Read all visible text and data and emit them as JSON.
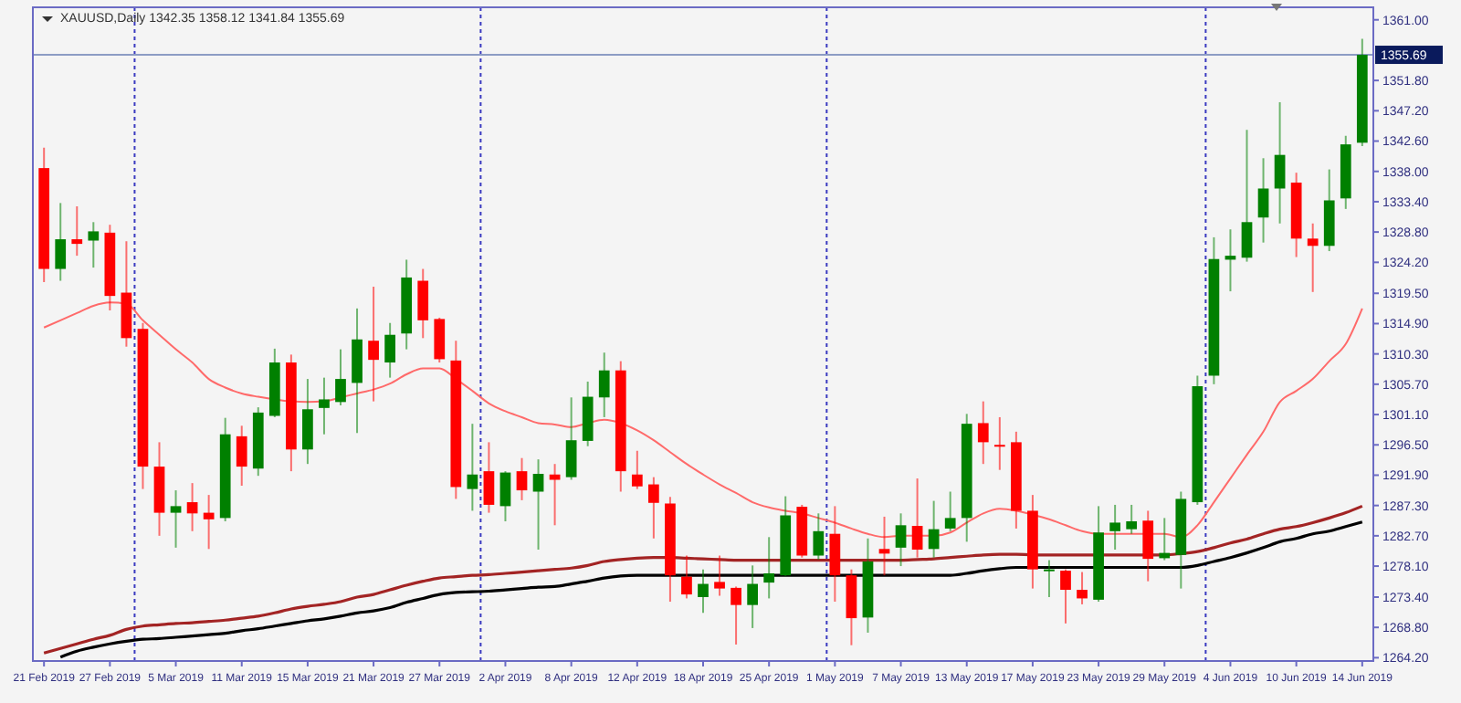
{
  "chart_data": {
    "type": "candlestick",
    "title": "XAUUSD,Daily  1342.35 1358.12 1341.84 1355.69",
    "categories": [
      "21 Feb 2019",
      null,
      null,
      null,
      "27 Feb 2019",
      null,
      null,
      null,
      "5 Mar 2019",
      null,
      null,
      null,
      "11 Mar 2019",
      null,
      null,
      null,
      "15 Mar 2019",
      null,
      null,
      null,
      "21 Mar 2019",
      null,
      null,
      null,
      "27 Mar 2019",
      null,
      null,
      null,
      "2 Apr 2019",
      null,
      null,
      null,
      "8 Apr 2019",
      null,
      null,
      null,
      "12 Apr 2019",
      null,
      null,
      null,
      "18 Apr 2019",
      null,
      null,
      null,
      "25 Apr 2019",
      null,
      null,
      null,
      "1 May 2019",
      null,
      null,
      null,
      "7 May 2019",
      null,
      null,
      null,
      "13 May 2019",
      null,
      null,
      null,
      "17 May 2019",
      null,
      null,
      null,
      "23 May 2019",
      null,
      null,
      null,
      "29 May 2019",
      null,
      null,
      null,
      "4 Jun 2019",
      null,
      null,
      null,
      "10 Jun 2019",
      null,
      null,
      null,
      "14 Jun 2019"
    ],
    "ylim": [
      1263.7,
      1362.9
    ],
    "yticks": [
      {
        "value": 1361,
        "label": "1361.00"
      },
      {
        "value": 1351.8,
        "label": "1351.80"
      },
      {
        "value": 1347.2,
        "label": "1347.20"
      },
      {
        "value": 1342.6,
        "label": "1342.60"
      },
      {
        "value": 1338,
        "label": "1338.00"
      },
      {
        "value": 1333.4,
        "label": "1333.40"
      },
      {
        "value": 1328.8,
        "label": "1328.80"
      },
      {
        "value": 1324.2,
        "label": "1324.20"
      },
      {
        "value": 1319.5,
        "label": "1319.50"
      },
      {
        "value": 1314.9,
        "label": "1314.90"
      },
      {
        "value": 1310.3,
        "label": "1310.30"
      },
      {
        "value": 1305.7,
        "label": "1305.70"
      },
      {
        "value": 1301.1,
        "label": "1301.10"
      },
      {
        "value": 1296.5,
        "label": "1296.50"
      },
      {
        "value": 1291.9,
        "label": "1291.90"
      },
      {
        "value": 1287.3,
        "label": "1287.30"
      },
      {
        "value": 1282.7,
        "label": "1282.70"
      },
      {
        "value": 1278.1,
        "label": "1278.10"
      },
      {
        "value": 1273.4,
        "label": "1273.40"
      },
      {
        "value": 1268.8,
        "label": "1268.80"
      },
      {
        "value": 1264.2,
        "label": "1264.20"
      }
    ],
    "ref_lines": [
      {
        "axis": "y",
        "value": 1355.69,
        "label": "1355.69",
        "color": "#8c9cc4",
        "line_style": "solid"
      }
    ],
    "series": [
      {
        "type": "line",
        "color": "#ff6a6a",
        "values": [
          1314.3,
          1315.4,
          1316.5,
          1317.6,
          1318.1,
          1317.9,
          1315.4,
          1313.2,
          1311.0,
          1309.0,
          1306.5,
          1305.2,
          1304.3,
          1303.8,
          1303.4,
          1303.1,
          1303.0,
          1303.1,
          1303.7,
          1304.3,
          1304.9,
          1305.8,
          1307.2,
          1308.1,
          1308.1,
          1306.5,
          1304.7,
          1302.8,
          1301.6,
          1300.7,
          1299.8,
          1299.6,
          1299.2,
          1299.8,
          1300.3,
          1299.8,
          1298.7,
          1297.2,
          1295.4,
          1293.6,
          1292.0,
          1290.5,
          1289.2,
          1287.8,
          1287.0,
          1286.5,
          1286.1,
          1285.4,
          1284.7,
          1283.8,
          1283.0,
          1282.5,
          1282.7,
          1282.7,
          1282.7,
          1283.2,
          1284.7,
          1286.1,
          1286.8,
          1286.5,
          1285.9,
          1285.2,
          1284.3,
          1283.4,
          1283.0,
          1283.0,
          1283.0,
          1283.0,
          1283.0,
          1282.5,
          1284.3,
          1287.8,
          1291.4,
          1295.0,
          1298.5,
          1303.0,
          1304.7,
          1306.5,
          1309.2,
          1311.8,
          1317.2
        ]
      },
      {
        "type": "line",
        "color": "#a32424",
        "values": [
          1264.9,
          1265.6,
          1266.3,
          1267.0,
          1267.6,
          1268.5,
          1269.0,
          1269.2,
          1269.4,
          1269.5,
          1269.7,
          1269.9,
          1270.2,
          1270.5,
          1271.0,
          1271.6,
          1272.0,
          1272.3,
          1272.7,
          1273.4,
          1273.8,
          1274.5,
          1275.2,
          1275.8,
          1276.3,
          1276.5,
          1276.7,
          1276.8,
          1277.0,
          1277.2,
          1277.4,
          1277.6,
          1277.8,
          1278.2,
          1278.8,
          1279.1,
          1279.3,
          1279.4,
          1279.4,
          1279.3,
          1279.2,
          1279.1,
          1279.0,
          1279.0,
          1279.0,
          1279.0,
          1279.0,
          1279.0,
          1279.0,
          1279.0,
          1279.0,
          1279.0,
          1279.0,
          1279.1,
          1279.2,
          1279.4,
          1279.6,
          1279.8,
          1279.9,
          1279.9,
          1279.8,
          1279.8,
          1279.8,
          1279.8,
          1279.8,
          1279.8,
          1279.8,
          1279.8,
          1279.8,
          1280.0,
          1280.3,
          1280.9,
          1281.6,
          1282.2,
          1283.0,
          1283.7,
          1284.1,
          1284.7,
          1285.4,
          1286.2,
          1287.2
        ]
      },
      {
        "type": "line",
        "color": "#000000",
        "values": [
          null,
          1264.3,
          1265.2,
          1265.8,
          1266.3,
          1266.7,
          1267.0,
          1267.1,
          1267.3,
          1267.5,
          1267.7,
          1267.9,
          1268.3,
          1268.6,
          1269.0,
          1269.4,
          1269.8,
          1270.1,
          1270.5,
          1271.0,
          1271.3,
          1271.8,
          1272.6,
          1273.2,
          1273.8,
          1274.1,
          1274.2,
          1274.3,
          1274.5,
          1274.7,
          1274.9,
          1275.0,
          1275.4,
          1275.8,
          1276.3,
          1276.6,
          1276.7,
          1276.7,
          1276.7,
          1276.7,
          1276.7,
          1276.7,
          1276.7,
          1276.7,
          1276.7,
          1276.7,
          1276.7,
          1276.7,
          1276.7,
          1276.7,
          1276.7,
          1276.7,
          1276.7,
          1276.7,
          1276.7,
          1276.7,
          1277.0,
          1277.4,
          1277.7,
          1277.9,
          1277.9,
          1277.9,
          1277.9,
          1277.9,
          1277.9,
          1277.9,
          1277.9,
          1277.9,
          1277.9,
          1277.9,
          1278.2,
          1278.8,
          1279.4,
          1280.1,
          1280.9,
          1281.8,
          1282.3,
          1283.0,
          1283.4,
          1284.1,
          1284.8
        ]
      },
      {
        "colors": [
          "#ff0000",
          "#008000",
          "#ff0000",
          "#008000",
          "#ff0000",
          "#ff0000",
          "#ff0000",
          "#ff0000",
          "#008000",
          "#ff0000",
          "#ff0000",
          "#008000",
          "#ff0000",
          "#008000",
          "#008000",
          "#ff0000",
          "#008000",
          "#008000",
          "#008000",
          "#008000",
          "#ff0000",
          "#008000",
          "#008000",
          "#ff0000",
          "#ff0000",
          "#ff0000",
          "#008000",
          "#ff0000",
          "#008000",
          "#ff0000",
          "#008000",
          "#ff0000",
          "#008000",
          "#008000",
          "#008000",
          "#ff0000",
          "#ff0000",
          "#ff0000",
          "#ff0000",
          "#ff0000",
          "#008000",
          "#ff0000",
          "#ff0000",
          "#008000",
          "#008000",
          "#008000",
          "#ff0000",
          "#008000",
          "#ff0000",
          "#ff0000",
          "#008000",
          "#ff0000",
          "#008000",
          "#ff0000",
          "#008000",
          "#008000",
          "#008000",
          "#ff0000",
          "#ff0000",
          "#ff0000",
          "#ff0000",
          "#008000",
          "#ff0000",
          "#ff0000",
          "#008000",
          "#008000",
          "#008000",
          "#ff0000",
          "#008000",
          "#008000",
          "#008000",
          "#008000",
          "#008000",
          "#008000",
          "#008000",
          "#008000",
          "#ff0000",
          "#ff0000",
          "#008000",
          "#008000",
          "#008000"
        ],
        "ohlc": [
          [
            1338.5,
            1341.6,
            1321.2,
            1323.2
          ],
          [
            1323.2,
            1333.2,
            1321.4,
            1327.7
          ],
          [
            1327.7,
            1332.7,
            1325.2,
            1327.0
          ],
          [
            1327.5,
            1330.3,
            1323.4,
            1328.9
          ],
          [
            1328.7,
            1329.9,
            1316.9,
            1319.1
          ],
          [
            1319.6,
            1327.4,
            1311.4,
            1312.7
          ],
          [
            1314.1,
            1315.0,
            1289.8,
            1293.2
          ],
          [
            1293.2,
            1296.9,
            1282.7,
            1286.2
          ],
          [
            1286.2,
            1289.6,
            1280.9,
            1287.2
          ],
          [
            1287.8,
            1290.7,
            1283.4,
            1286.1
          ],
          [
            1286.2,
            1288.9,
            1280.7,
            1285.2
          ],
          [
            1285.4,
            1300.6,
            1284.9,
            1298.1
          ],
          [
            1297.8,
            1299.4,
            1290.3,
            1293.2
          ],
          [
            1292.9,
            1302.2,
            1291.8,
            1301.4
          ],
          [
            1300.9,
            1311.1,
            1300.7,
            1309.0
          ],
          [
            1309.0,
            1310.2,
            1292.5,
            1295.8
          ],
          [
            1295.8,
            1306.5,
            1293.6,
            1301.9
          ],
          [
            1302.1,
            1306.7,
            1298.1,
            1303.4
          ],
          [
            1303.0,
            1311.0,
            1302.5,
            1306.5
          ],
          [
            1305.9,
            1317.2,
            1298.3,
            1312.5
          ],
          [
            1312.3,
            1320.5,
            1303.1,
            1309.4
          ],
          [
            1309.0,
            1315.0,
            1306.7,
            1313.2
          ],
          [
            1313.4,
            1324.6,
            1311.0,
            1321.9
          ],
          [
            1321.4,
            1323.2,
            1312.7,
            1315.4
          ],
          [
            1315.6,
            1315.8,
            1309.0,
            1309.5
          ],
          [
            1309.3,
            1312.3,
            1288.3,
            1290.1
          ],
          [
            1289.8,
            1299.7,
            1286.5,
            1292.0
          ],
          [
            1292.5,
            1296.9,
            1286.2,
            1287.4
          ],
          [
            1287.2,
            1292.5,
            1284.9,
            1292.3
          ],
          [
            1292.5,
            1294.5,
            1288.1,
            1289.6
          ],
          [
            1289.4,
            1294.3,
            1280.6,
            1292.1
          ],
          [
            1292.0,
            1293.6,
            1284.3,
            1291.2
          ],
          [
            1291.6,
            1303.7,
            1291.2,
            1297.2
          ],
          [
            1297.1,
            1306.1,
            1296.3,
            1303.8
          ],
          [
            1303.7,
            1310.5,
            1300.7,
            1307.8
          ],
          [
            1307.8,
            1309.2,
            1289.4,
            1292.5
          ],
          [
            1292.0,
            1295.6,
            1289.8,
            1290.2
          ],
          [
            1290.5,
            1291.6,
            1282.3,
            1287.7
          ],
          [
            1287.6,
            1288.6,
            1272.7,
            1276.7
          ],
          [
            1276.5,
            1279.7,
            1273.2,
            1273.8
          ],
          [
            1273.4,
            1277.6,
            1271.0,
            1275.4
          ],
          [
            1275.7,
            1279.7,
            1273.6,
            1274.7
          ],
          [
            1274.8,
            1275.0,
            1266.2,
            1272.2
          ],
          [
            1272.2,
            1278.2,
            1268.7,
            1275.4
          ],
          [
            1275.6,
            1282.5,
            1273.2,
            1277.0
          ],
          [
            1276.7,
            1288.7,
            1276.6,
            1285.8
          ],
          [
            1287.1,
            1287.4,
            1279.4,
            1279.7
          ],
          [
            1279.7,
            1286.1,
            1279.1,
            1283.4
          ],
          [
            1283.0,
            1287.2,
            1272.7,
            1276.7
          ],
          [
            1276.7,
            1277.6,
            1266.1,
            1270.2
          ],
          [
            1270.3,
            1282.3,
            1268.0,
            1278.8
          ],
          [
            1280.7,
            1285.6,
            1276.7,
            1280.0
          ],
          [
            1280.9,
            1286.1,
            1278.1,
            1284.3
          ],
          [
            1284.2,
            1291.4,
            1279.4,
            1280.6
          ],
          [
            1280.7,
            1288.0,
            1279.4,
            1283.7
          ],
          [
            1283.8,
            1289.4,
            1283.4,
            1285.4
          ],
          [
            1285.4,
            1301.2,
            1281.8,
            1299.7
          ],
          [
            1299.8,
            1303.1,
            1293.6,
            1296.9
          ],
          [
            1296.5,
            1300.7,
            1292.7,
            1296.3
          ],
          [
            1296.9,
            1298.5,
            1283.8,
            1286.5
          ],
          [
            1286.5,
            1288.9,
            1274.7,
            1277.6
          ],
          [
            1277.4,
            1279.0,
            1273.4,
            1277.6
          ],
          [
            1277.4,
            1277.6,
            1269.4,
            1274.5
          ],
          [
            1274.5,
            1277.2,
            1272.3,
            1273.2
          ],
          [
            1273.0,
            1287.2,
            1272.7,
            1283.2
          ],
          [
            1283.4,
            1287.4,
            1280.6,
            1284.7
          ],
          [
            1283.7,
            1287.4,
            1283.0,
            1284.9
          ],
          [
            1285.0,
            1286.5,
            1275.8,
            1279.2
          ],
          [
            1279.3,
            1285.4,
            1279.0,
            1280.1
          ],
          [
            1279.8,
            1289.4,
            1274.7,
            1288.3
          ],
          [
            1287.8,
            1307.0,
            1287.4,
            1305.4
          ],
          [
            1307.0,
            1328.0,
            1305.7,
            1324.7
          ],
          [
            1324.6,
            1329.2,
            1319.8,
            1325.2
          ],
          [
            1324.9,
            1344.3,
            1324.3,
            1330.3
          ],
          [
            1331.0,
            1340.0,
            1327.2,
            1335.4
          ],
          [
            1335.4,
            1348.5,
            1330.1,
            1340.5
          ],
          [
            1336.3,
            1337.8,
            1325.0,
            1327.8
          ],
          [
            1327.8,
            1330.1,
            1319.7,
            1326.7
          ],
          [
            1326.7,
            1338.3,
            1325.9,
            1333.6
          ],
          [
            1333.9,
            1343.4,
            1332.3,
            1342.1
          ],
          [
            1342.35,
            1358.12,
            1341.84,
            1355.69
          ]
        ]
      }
    ],
    "grid": false
  }
}
